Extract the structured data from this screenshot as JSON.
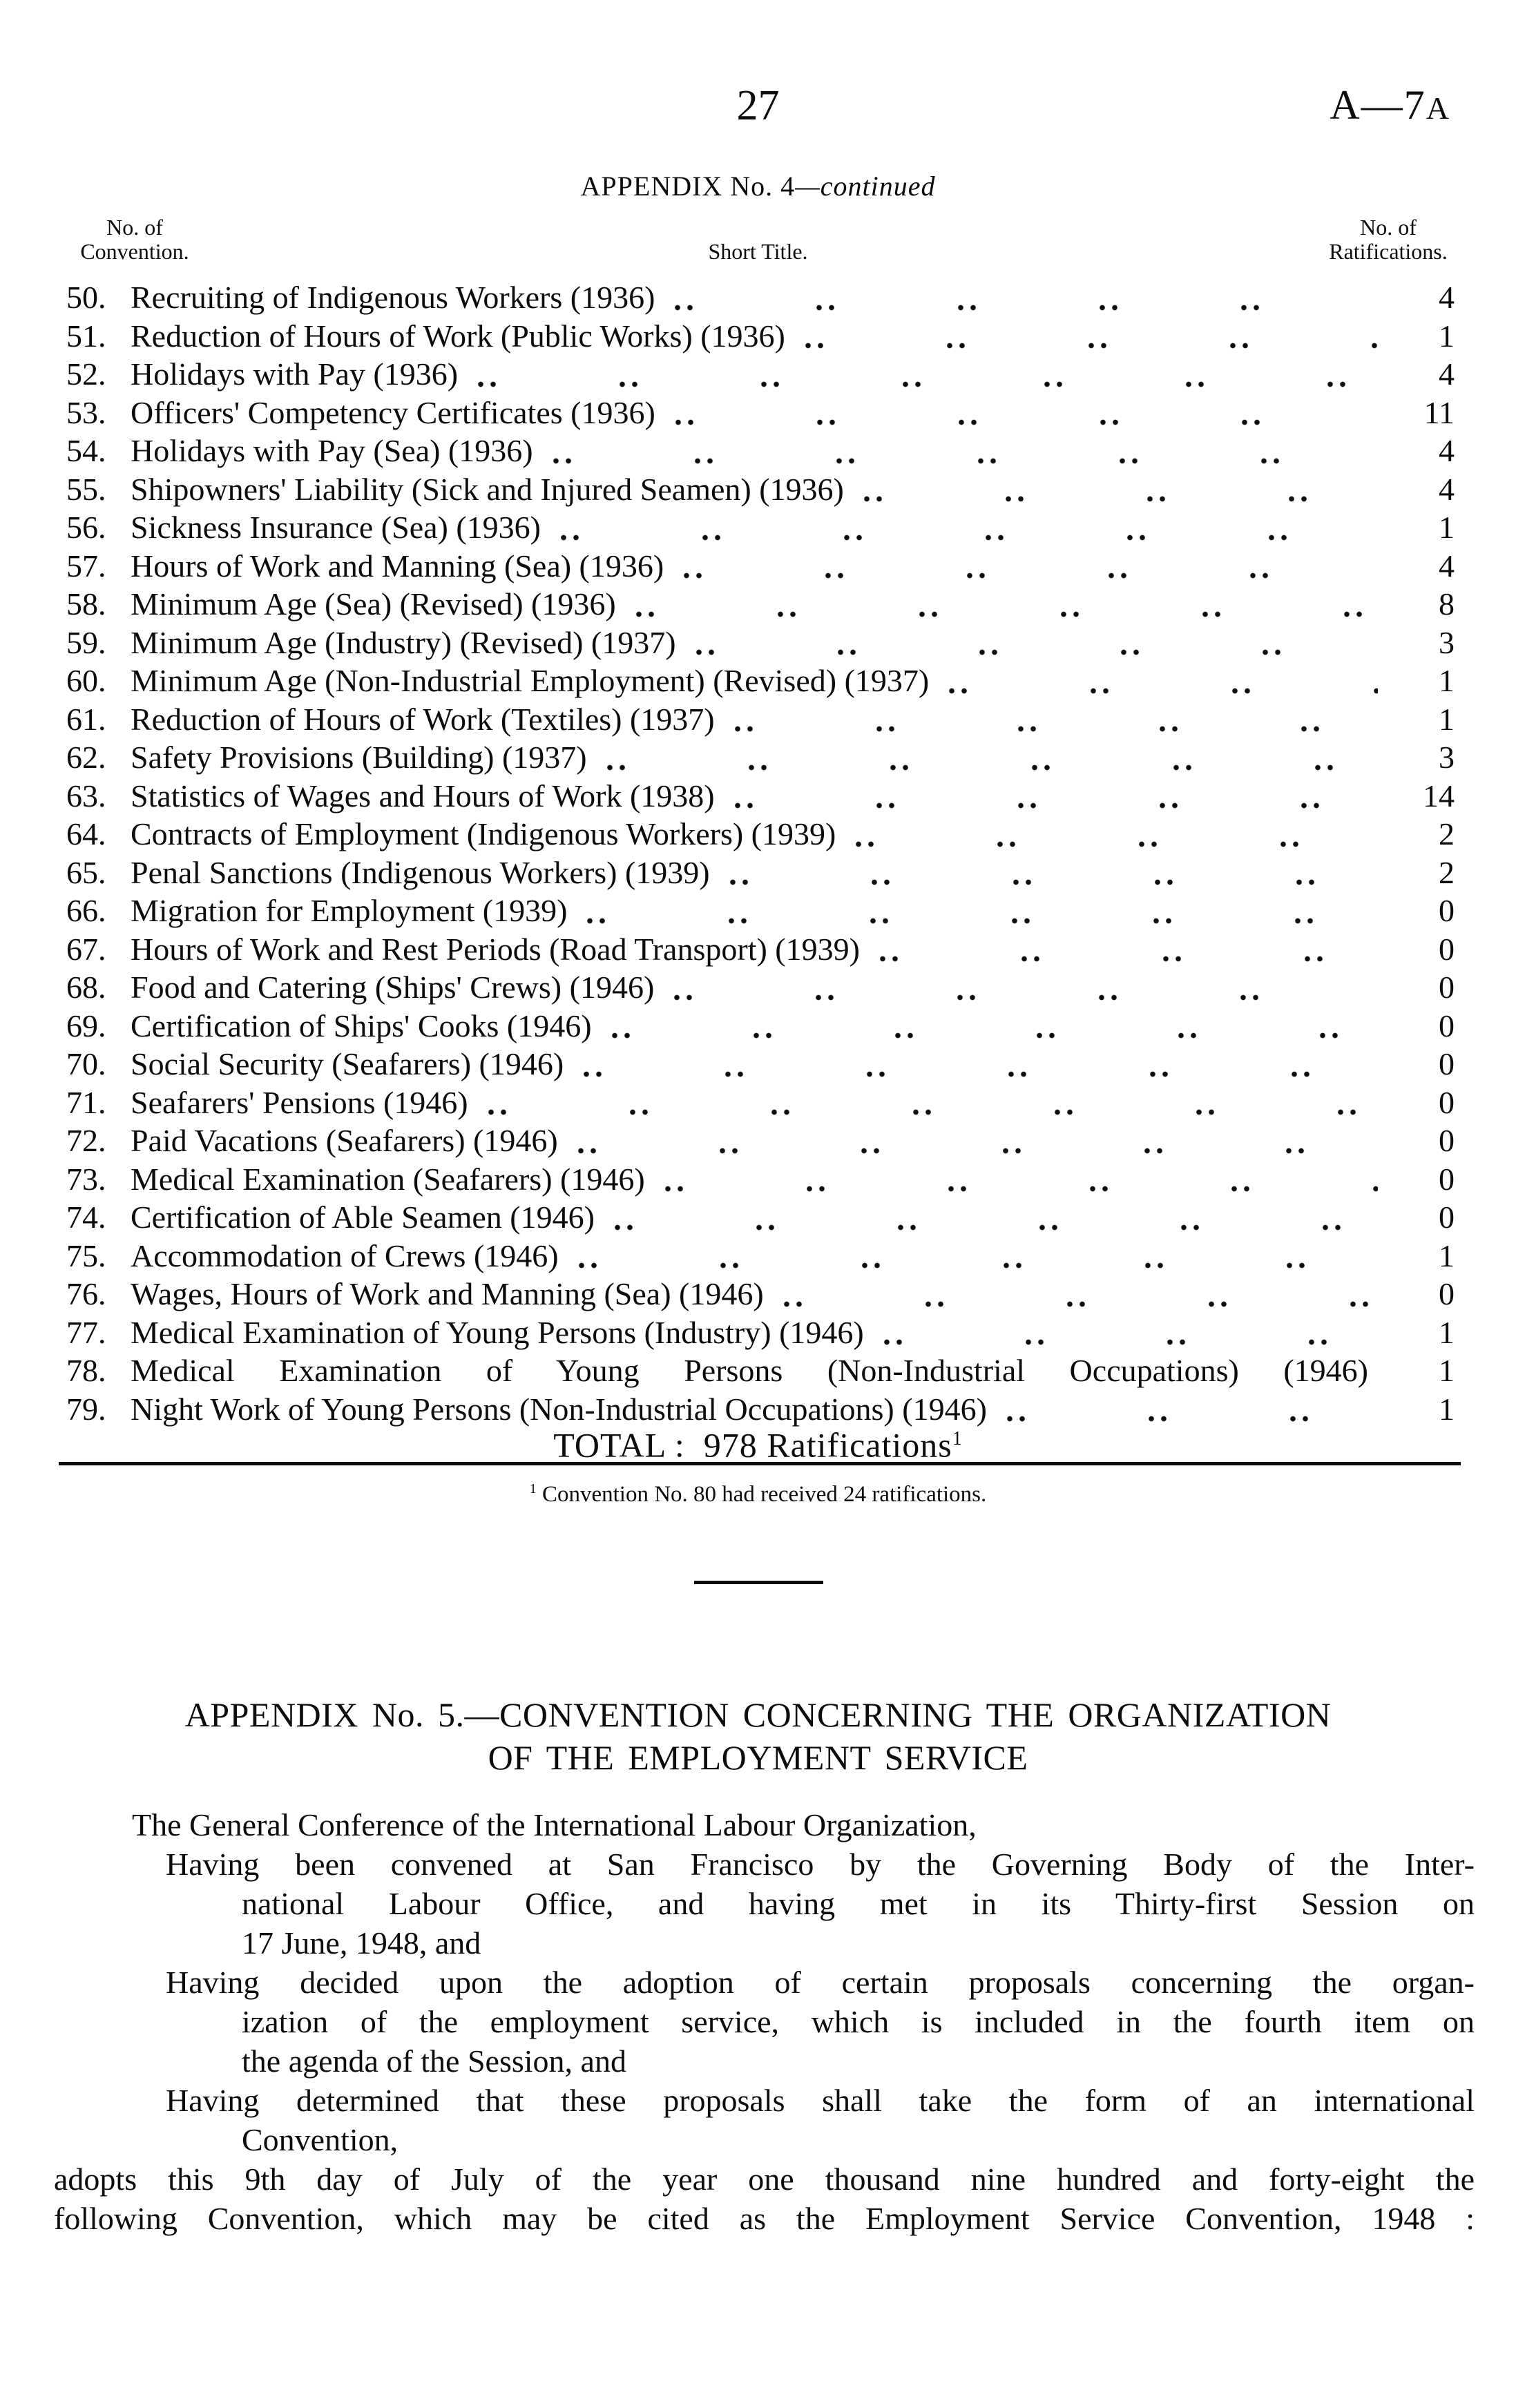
{
  "header": {
    "page_number": "27",
    "doc_ref_main": "A—7",
    "doc_ref_suffix": "A"
  },
  "appendix4": {
    "heading_main": "APPENDIX No. 4",
    "heading_continued": "—continued",
    "col_headers": {
      "left_line1": "No. of",
      "left_line2": "Convention.",
      "center": "Short Title.",
      "right_line1": "No. of",
      "right_line2": "Ratifications."
    },
    "rows": [
      {
        "no": "50.",
        "title": "Recruiting of Indigenous Workers (1936)",
        "ratifications": "4"
      },
      {
        "no": "51.",
        "title": "Reduction of Hours of Work (Public Works) (1936)",
        "ratifications": "1"
      },
      {
        "no": "52.",
        "title": "Holidays with Pay (1936)",
        "ratifications": "4"
      },
      {
        "no": "53.",
        "title": "Officers' Competency Certificates (1936)",
        "ratifications": "11"
      },
      {
        "no": "54.",
        "title": "Holidays with Pay (Sea) (1936)",
        "ratifications": "4"
      },
      {
        "no": "55.",
        "title": "Shipowners' Liability (Sick and Injured Seamen) (1936)",
        "ratifications": "4"
      },
      {
        "no": "56.",
        "title": "Sickness Insurance (Sea) (1936)",
        "ratifications": "1"
      },
      {
        "no": "57.",
        "title": "Hours of Work and Manning (Sea) (1936)",
        "ratifications": "4"
      },
      {
        "no": "58.",
        "title": "Minimum Age (Sea) (Revised) (1936)",
        "ratifications": "8"
      },
      {
        "no": "59.",
        "title": "Minimum Age (Industry) (Revised) (1937)",
        "ratifications": "3"
      },
      {
        "no": "60.",
        "title": "Minimum Age (Non-Industrial Employment) (Revised) (1937)",
        "ratifications": "1"
      },
      {
        "no": "61.",
        "title": "Reduction of Hours of Work (Textiles) (1937)",
        "ratifications": "1"
      },
      {
        "no": "62.",
        "title": "Safety Provisions (Building) (1937)",
        "ratifications": "3"
      },
      {
        "no": "63.",
        "title": "Statistics of Wages and Hours of Work (1938)",
        "ratifications": "14"
      },
      {
        "no": "64.",
        "title": "Contracts of Employment (Indigenous Workers) (1939)",
        "ratifications": "2"
      },
      {
        "no": "65.",
        "title": "Penal Sanctions (Indigenous Workers) (1939)",
        "ratifications": "2"
      },
      {
        "no": "66.",
        "title": "Migration for Employment (1939)",
        "ratifications": "0"
      },
      {
        "no": "67.",
        "title": "Hours of Work and Rest Periods (Road Transport) (1939)",
        "ratifications": "0"
      },
      {
        "no": "68.",
        "title": "Food and Catering (Ships' Crews) (1946)",
        "ratifications": "0"
      },
      {
        "no": "69.",
        "title": "Certification of Ships' Cooks (1946)",
        "ratifications": "0"
      },
      {
        "no": "70.",
        "title": "Social Security (Seafarers) (1946)",
        "ratifications": "0"
      },
      {
        "no": "71.",
        "title": "Seafarers' Pensions (1946)",
        "ratifications": "0"
      },
      {
        "no": "72.",
        "title": "Paid Vacations (Seafarers) (1946)",
        "ratifications": "0"
      },
      {
        "no": "73.",
        "title": "Medical Examination (Seafarers) (1946)",
        "ratifications": "0"
      },
      {
        "no": "74.",
        "title": "Certification of Able Seamen (1946)",
        "ratifications": "0"
      },
      {
        "no": "75.",
        "title": "Accommodation of Crews (1946)",
        "ratifications": "1"
      },
      {
        "no": "76.",
        "title": "Wages, Hours of Work and Manning (Sea) (1946)",
        "ratifications": "0"
      },
      {
        "no": "77.",
        "title": "Medical Examination of Young Persons (Industry) (1946)",
        "ratifications": "1"
      },
      {
        "no": "78.",
        "title": "Medical Examination of Young Persons (Non-Industrial Occupations) (1946)",
        "ratifications": "1",
        "wide": true
      },
      {
        "no": "79.",
        "title": "Night Work of Young Persons (Non-Industrial Occupations) (1946)",
        "ratifications": "1"
      }
    ],
    "total": {
      "label": "TOTAL :",
      "value": "978 Ratifications",
      "marker": "1"
    },
    "footnote": {
      "marker": "1",
      "text": "Convention No. 80 had received 24 ratifications."
    }
  },
  "appendix5": {
    "heading_line1": "APPENDIX No. 5.—CONVENTION CONCERNING THE ORGANIZATION",
    "heading_line2": "OF THE EMPLOYMENT SERVICE",
    "body_lines": [
      {
        "text": "The General Conference of the International Labour Organization,",
        "indent": "ind-p1",
        "justify": false
      },
      {
        "text": "Having been convened at San Francisco by the Governing Body of the Inter-",
        "indent": "ind-first",
        "justify": true
      },
      {
        "text": "national Labour Office, and having met in its Thirty-first Session on",
        "indent": "ind-cont",
        "justify": true
      },
      {
        "text": "17 June, 1948, and",
        "indent": "ind-cont",
        "justify": false
      },
      {
        "text": "Having decided upon the adoption of certain proposals concerning the organ-",
        "indent": "ind-first",
        "justify": true
      },
      {
        "text": "ization of the employment service, which is included in the fourth item on",
        "indent": "ind-cont",
        "justify": true
      },
      {
        "text": "the agenda of the Session, and",
        "indent": "ind-cont",
        "justify": false
      },
      {
        "text": "Having determined that these proposals shall take the form of an international",
        "indent": "ind-first",
        "justify": true
      },
      {
        "text": "Convention,",
        "indent": "ind-cont",
        "justify": false
      },
      {
        "text": "adopts this 9th day of July of the year one thousand nine hundred and forty-eight the",
        "indent": "ind-flush",
        "justify": true
      },
      {
        "text": "following Convention, which may be cited as the Employment Service Convention, 1948 :",
        "indent": "ind-flush",
        "justify": true
      }
    ]
  }
}
